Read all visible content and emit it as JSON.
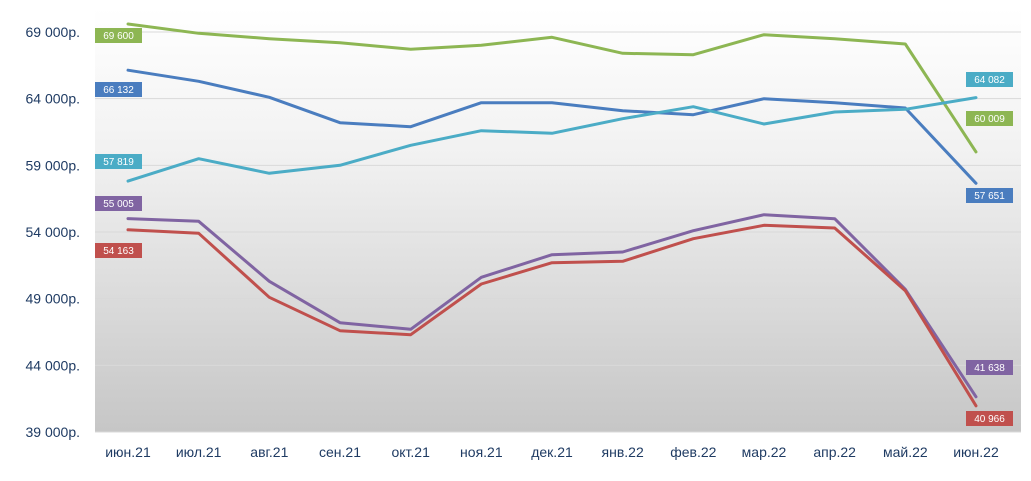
{
  "chart_data": {
    "type": "line",
    "title": "",
    "xlabel": "",
    "ylabel": "",
    "ylim": [
      39000,
      69000
    ],
    "yticks": [
      39000,
      44000,
      49000,
      54000,
      59000,
      64000,
      69000
    ],
    "ytick_labels": [
      "39 000р.",
      "44 000р.",
      "49 000р.",
      "54 000р.",
      "59 000р.",
      "64 000р.",
      "69 000р."
    ],
    "categories": [
      "июн.21",
      "июл.21",
      "авг.21",
      "сен.21",
      "окт.21",
      "ноя.21",
      "дек.21",
      "янв.22",
      "фев.22",
      "мар.22",
      "апр.22",
      "май.22",
      "июн.22"
    ],
    "grid": true,
    "series": [
      {
        "color": "#8db653",
        "values": [
          69600,
          68900,
          68500,
          68200,
          67700,
          68000,
          68600,
          67400,
          67300,
          68800,
          68500,
          68100,
          60009
        ],
        "start_label": "69 600",
        "end_label": "60 009"
      },
      {
        "color": "#4a7dbf",
        "values": [
          66132,
          65300,
          64100,
          62200,
          61900,
          63700,
          63700,
          63100,
          62800,
          64000,
          63700,
          63300,
          57651
        ],
        "start_label": "66 132",
        "end_label": "57 651"
      },
      {
        "color": "#4bacc6",
        "values": [
          57819,
          59500,
          58400,
          59000,
          60500,
          61600,
          61400,
          62500,
          63400,
          62100,
          63000,
          63200,
          64082
        ],
        "start_label": "57 819",
        "end_label": "64 082"
      },
      {
        "color": "#8064a2",
        "values": [
          55005,
          54800,
          50300,
          47200,
          46700,
          50600,
          52300,
          52500,
          54100,
          55300,
          55000,
          49700,
          41638
        ],
        "start_label": "55 005",
        "end_label": "41 638"
      },
      {
        "color": "#c0504d",
        "values": [
          54163,
          53900,
          49100,
          46600,
          46300,
          50100,
          51700,
          51800,
          53500,
          54500,
          54300,
          49600,
          40966
        ],
        "start_label": "54 163",
        "end_label": "40 966"
      }
    ]
  }
}
